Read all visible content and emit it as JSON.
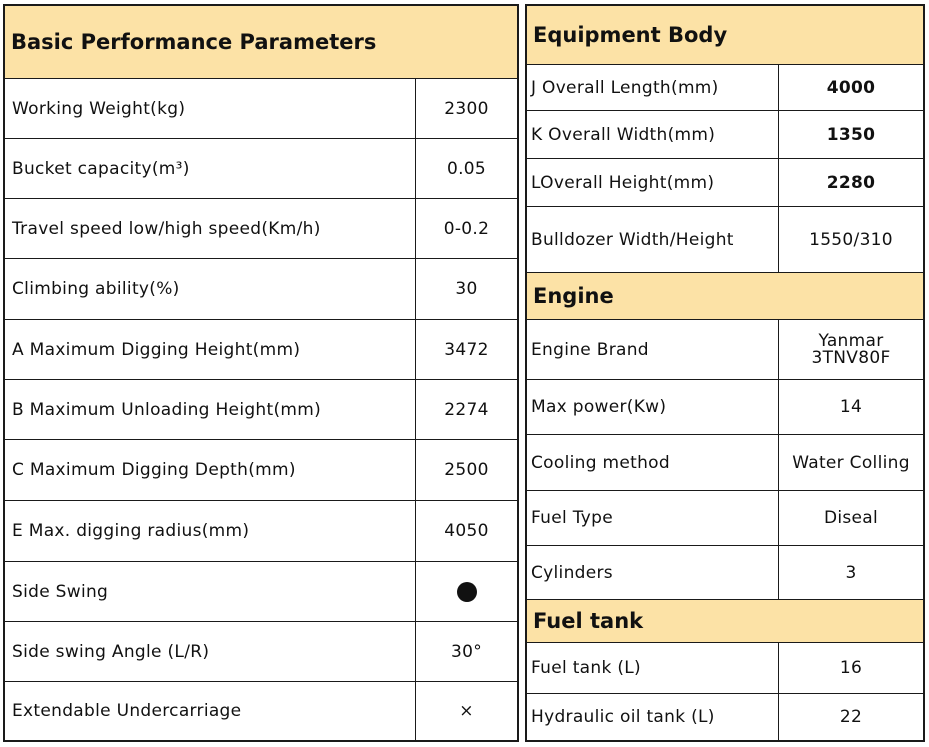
{
  "left": {
    "title": "Basic Performance Parameters",
    "rows": [
      {
        "label": "Working Weight(kg)",
        "value": "2300"
      },
      {
        "label": "Bucket capacity(m³)",
        "value": "0.05"
      },
      {
        "label": "Travel speed low/high speed(Km/h)",
        "value": "0-0.2"
      },
      {
        "label": "Climbing ability(%)",
        "value": "30"
      },
      {
        "label": "A Maximum Digging Height(mm)",
        "value": "3472"
      },
      {
        "label": "B Maximum Unloading Height(mm)",
        "value": "2274"
      },
      {
        "label": "C Maximum Digging Depth(mm)",
        "value": "2500"
      },
      {
        "label": "E Max. digging radius(mm)",
        "value": "4050"
      },
      {
        "label": "Side Swing",
        "value_icon": "filled-circle-icon"
      },
      {
        "label": "Side swing Angle (L/R)",
        "value": "30°"
      },
      {
        "label": "Extendable Undercarriage",
        "value": "×"
      }
    ]
  },
  "right": {
    "sections": [
      {
        "title": "Equipment Body",
        "rows": [
          {
            "label": "J Overall Length(mm)",
            "value": "4000"
          },
          {
            "label": "K Overall Width(mm)",
            "value": "1350"
          },
          {
            "label": "LOverall Height(mm)",
            "value": "2280"
          },
          {
            "label": "Bulldozer Width/Height",
            "value": "1550/310"
          }
        ]
      },
      {
        "title": "Engine",
        "rows": [
          {
            "label": "Engine Brand",
            "value_line1": "Yanmar",
            "value_line2": "3TNV80F"
          },
          {
            "label": "Max power(Kw)",
            "value": "14"
          },
          {
            "label": "Cooling method",
            "value": "Water Colling"
          },
          {
            "label": "Fuel Type",
            "value": "Diseal"
          },
          {
            "label": "Cylinders",
            "value": "3"
          }
        ]
      },
      {
        "title": "Fuel tank",
        "rows": [
          {
            "label": "Fuel tank (L)",
            "value": "16"
          },
          {
            "label": "Hydraulic oil tank (L)",
            "value": "22"
          }
        ]
      }
    ]
  },
  "colors": {
    "header_bg": "#fce2a6",
    "border": "#1a1a1a"
  }
}
